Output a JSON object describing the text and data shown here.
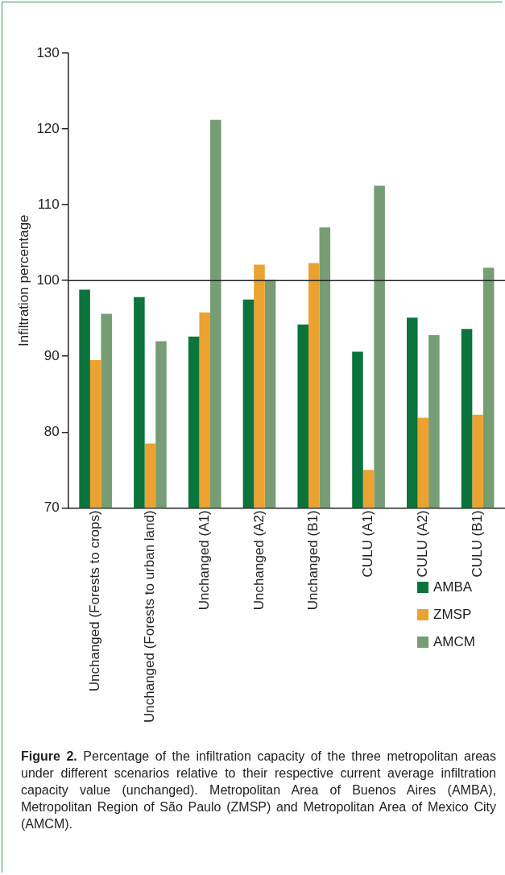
{
  "chart_data": {
    "type": "bar",
    "ylabel": "Infiltration percentage",
    "categories": [
      "Unchanged (Forests to crops)",
      "Unchanged (Forests to urban land)",
      "Unchanged (A1)",
      "Unchanged (A2)",
      "Unchanged (B1)",
      "CULU (A1)",
      "CULU (A2)",
      "CULU (B1)"
    ],
    "series": [
      {
        "name": "AMBA",
        "color": "#0a743c",
        "values": [
          98.8,
          97.8,
          92.6,
          97.5,
          94.2,
          90.6,
          95.1,
          93.6
        ]
      },
      {
        "name": "ZMSP",
        "color": "#eba230",
        "values": [
          89.5,
          78.5,
          95.8,
          102.1,
          102.3,
          75.0,
          81.9,
          82.3
        ]
      },
      {
        "name": "AMCM",
        "color": "#779d75",
        "values": [
          95.6,
          92.0,
          121.2,
          100.1,
          107.0,
          112.5,
          92.8,
          101.7
        ]
      }
    ],
    "ylim": [
      70,
      130
    ],
    "yticks": [
      70,
      80,
      90,
      100,
      110,
      120,
      130
    ],
    "grid": false,
    "legend": "bottom right",
    "ref_lines": [
      {
        "axis": "y",
        "value": 100,
        "color": "#222222"
      }
    ],
    "annotations": [
      "Figure 2. Percentage of the infiltration capacity of the three metropolitan areas under different scenarios relative to their respective current average infiltration capacity value (unchanged). Metropolitan Area of Buenos Aires (AMBA), Metropolitan Region of São Paulo (ZMSP) and Metropolitan Area of Mexico City (AMCM)."
    ]
  }
}
